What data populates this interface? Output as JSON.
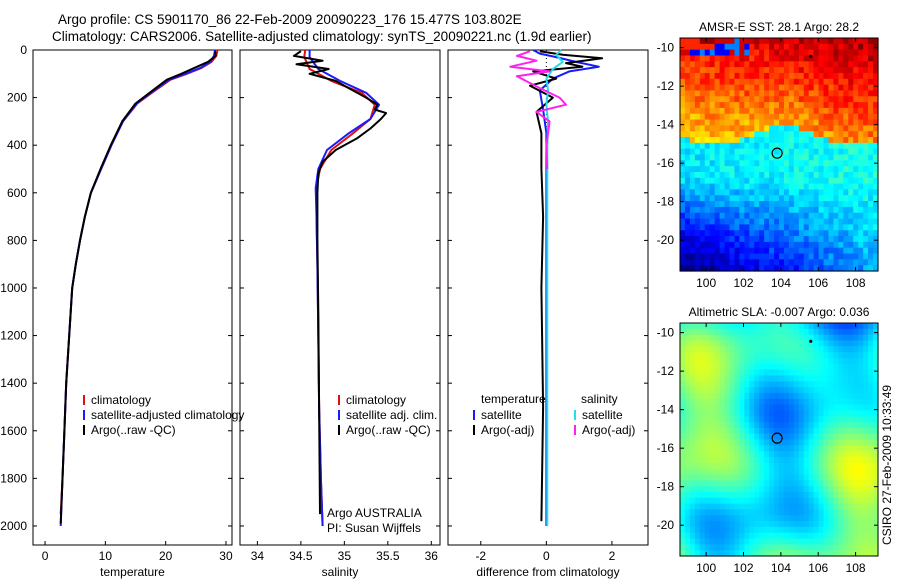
{
  "header": {
    "line1": "Argo profile: CS 5901170_86 22-Feb-2009 20090223_176 15.477S 103.802E",
    "line2": "Climatology: CARS2006. Satellite-adjusted climatology: synTS_20090221.nc (1.9d earlier)"
  },
  "stamp": "CSIRO 27-Feb-2009 10:33:49",
  "colors": {
    "red": "#dd1111",
    "blue": "#1a1aff",
    "black": "#000000",
    "cyan": "#22e0e8",
    "magenta": "#ff22ee"
  },
  "chart_data": [
    {
      "type": "line",
      "name": "temperature",
      "xlabel": "temperature",
      "ylabel": "",
      "xlim": [
        -2,
        31
      ],
      "ylim": [
        0,
        2080
      ],
      "y_inverted": true,
      "xticks": [
        0,
        10,
        20,
        30
      ],
      "xtick_labels": [
        "0",
        "10",
        "20",
        "30"
      ],
      "yticks": [
        0,
        200,
        400,
        600,
        800,
        1000,
        1200,
        1400,
        1600,
        1800,
        2000
      ],
      "ytick_labels": [
        "0",
        "200",
        "400",
        "600",
        "800",
        "1000",
        "1200",
        "1400",
        "1600",
        "1800",
        "2000"
      ],
      "legend": [
        "climatology",
        "satellite-adjusted climatology",
        "Argo(..raw -QC)"
      ],
      "series": [
        {
          "name": "climatology",
          "color": "red",
          "x": [
            28.6,
            28.4,
            27.6,
            26.0,
            23.5,
            20.8,
            18.0,
            15.3,
            12.9,
            11.0,
            9.3,
            7.6,
            6.6,
            5.8,
            5.1,
            4.5,
            4.0,
            3.5,
            3.2,
            2.9,
            2.6
          ],
          "y": [
            0,
            25,
            50,
            75,
            100,
            125,
            175,
            225,
            300,
            400,
            500,
            600,
            700,
            800,
            900,
            1000,
            1200,
            1400,
            1600,
            1800,
            1950
          ]
        },
        {
          "name": "satellite-adjusted climatology",
          "color": "blue",
          "x": [
            28.2,
            28.0,
            27.4,
            25.8,
            23.3,
            20.6,
            17.8,
            15.2,
            12.9,
            11.0,
            9.3,
            7.6,
            6.6,
            5.8,
            5.1,
            4.5,
            4.0,
            3.5,
            3.2,
            2.9,
            2.6
          ],
          "y": [
            0,
            25,
            50,
            75,
            100,
            125,
            175,
            225,
            300,
            400,
            500,
            600,
            700,
            800,
            900,
            1000,
            1200,
            1400,
            1600,
            1800,
            2000
          ]
        },
        {
          "name": "Argo(..raw -QC)",
          "color": "black",
          "x": [
            28.2,
            28.3,
            27.0,
            24.8,
            22.6,
            20.2,
            17.6,
            15.0,
            12.8,
            10.9,
            9.2,
            7.6,
            6.6,
            5.8,
            5.1,
            4.5,
            4.0,
            3.5,
            3.2,
            2.9,
            2.6
          ],
          "y": [
            5,
            25,
            50,
            75,
            100,
            125,
            175,
            225,
            300,
            400,
            500,
            600,
            700,
            800,
            900,
            1000,
            1200,
            1400,
            1600,
            1800,
            1990
          ]
        }
      ]
    },
    {
      "type": "line",
      "name": "salinity",
      "xlabel": "salinity",
      "ylabel": "",
      "xlim": [
        33.8,
        36.1
      ],
      "ylim": [
        0,
        2080
      ],
      "y_inverted": true,
      "xticks": [
        34,
        34.5,
        35,
        35.5,
        36
      ],
      "xtick_labels": [
        "34",
        "34.5",
        "35",
        "35.5",
        "36"
      ],
      "legend": [
        "climatology",
        "satellite adj. clim.",
        "Argo(..raw -QC)"
      ],
      "annotations": [
        "Argo AUSTRALIA",
        "PI: Susan Wijffels"
      ],
      "series": [
        {
          "name": "climatology",
          "color": "red",
          "x": [
            34.55,
            34.54,
            34.6,
            34.85,
            35.2,
            35.35,
            35.3,
            35.1,
            34.85,
            34.72,
            34.68,
            34.68,
            34.69,
            34.7,
            34.71,
            34.73,
            34.75
          ],
          "y": [
            0,
            30,
            80,
            130,
            180,
            230,
            290,
            350,
            420,
            500,
            580,
            700,
            900,
            1200,
            1500,
            1800,
            2000
          ]
        },
        {
          "name": "satellite adj. clim.",
          "color": "blue",
          "x": [
            34.6,
            34.6,
            34.7,
            34.95,
            35.25,
            35.4,
            35.3,
            35.05,
            34.8,
            34.7,
            34.67,
            34.68,
            34.69,
            34.7,
            34.71,
            34.73,
            34.75
          ],
          "y": [
            0,
            30,
            80,
            130,
            180,
            230,
            290,
            350,
            420,
            500,
            580,
            700,
            900,
            1200,
            1500,
            1800,
            2000
          ]
        },
        {
          "name": "Argo(..raw -QC)",
          "color": "black",
          "x": [
            34.5,
            34.42,
            34.75,
            34.45,
            34.82,
            34.6,
            34.9,
            35.05,
            35.25,
            35.38,
            35.35,
            35.48,
            35.42,
            35.3,
            35.15,
            34.9,
            34.75,
            34.7,
            34.69,
            34.69,
            34.7,
            34.71,
            34.72
          ],
          "y": [
            5,
            25,
            45,
            60,
            80,
            100,
            130,
            160,
            200,
            230,
            250,
            265,
            290,
            330,
            370,
            420,
            470,
            520,
            600,
            800,
            1100,
            1500,
            1950
          ]
        }
      ]
    },
    {
      "type": "line",
      "name": "difference",
      "xlabel": "difference from climatology",
      "ylabel": "",
      "xlim": [
        -3,
        3.1
      ],
      "ylim": [
        0,
        2080
      ],
      "y_inverted": true,
      "xticks": [
        -2,
        0,
        2
      ],
      "xtick_labels": [
        "-2",
        "0",
        "2"
      ],
      "legend_left_title": "temperature",
      "legend_right_title": "salinity",
      "legend_left": [
        "satellite",
        "Argo(-adj)"
      ],
      "legend_right": [
        "satellite",
        "Argo(-adj)"
      ],
      "series": [
        {
          "name": "temperature satellite",
          "color": "blue",
          "x": [
            -0.4,
            -0.2,
            0.3,
            0.9,
            1.6,
            0.7,
            0.2,
            -0.2,
            -0.1,
            0.0,
            0.0,
            0.0,
            0.0,
            0.0
          ],
          "y": [
            0,
            15,
            30,
            50,
            70,
            90,
            120,
            170,
            250,
            350,
            500,
            800,
            1300,
            2000
          ]
        },
        {
          "name": "temperature Argo(-adj)",
          "color": "black",
          "x": [
            -0.2,
            0.5,
            1.7,
            0.6,
            1.1,
            -0.4,
            0.3,
            -0.5,
            0.2,
            -0.3,
            -0.15,
            -0.15,
            -0.1,
            -0.15,
            -0.1,
            -0.15
          ],
          "y": [
            5,
            20,
            35,
            55,
            70,
            90,
            120,
            150,
            200,
            260,
            350,
            500,
            700,
            1000,
            1500,
            1980
          ]
        },
        {
          "name": "salinity satellite",
          "color": "cyan",
          "x": [
            0.45,
            0.3,
            0.5,
            0.2,
            0.0,
            0.05,
            0.0,
            0.05,
            0.03,
            0.03,
            0.03,
            0.03,
            0.03
          ],
          "y": [
            0,
            20,
            50,
            80,
            120,
            170,
            230,
            300,
            420,
            600,
            1000,
            1500,
            2000
          ]
        },
        {
          "name": "salinity Argo(-adj)",
          "color": "magenta",
          "x": [
            -0.5,
            -0.9,
            -0.3,
            -1.1,
            0.1,
            -0.9,
            -0.2,
            0.4,
            0.6,
            -0.3,
            0.1,
            0.0,
            0.03
          ],
          "y": [
            5,
            25,
            45,
            70,
            90,
            110,
            160,
            200,
            230,
            260,
            300,
            400,
            500
          ]
        }
      ]
    },
    {
      "type": "heatmap",
      "name": "sst_map",
      "title": "AMSR-E SST: 28.1  Argo: 28.2",
      "xlim": [
        98.6,
        109.2
      ],
      "ylim": [
        -21.6,
        -9.5
      ],
      "xticks": [
        100,
        102,
        104,
        106,
        108
      ],
      "xtick_labels": [
        "100",
        "102",
        "104",
        "106",
        "108"
      ],
      "yticks": [
        -10,
        -12,
        -14,
        -16,
        -18,
        -20
      ],
      "ytick_labels": [
        "-10",
        "-12",
        "-14",
        "-16",
        "-18",
        "-20"
      ],
      "marker": {
        "lon": 103.8,
        "lat": -15.48
      },
      "track_point": {
        "lon": 105.6,
        "lat": -10.45
      }
    },
    {
      "type": "heatmap",
      "name": "sla_map",
      "title": "Altimetric SLA: -0.007  Argo: 0.036",
      "xlim": [
        98.6,
        109.2
      ],
      "ylim": [
        -21.6,
        -9.5
      ],
      "xticks": [
        100,
        102,
        104,
        106,
        108
      ],
      "xtick_labels": [
        "100",
        "102",
        "104",
        "106",
        "108"
      ],
      "yticks": [
        -10,
        -12,
        -14,
        -16,
        -18,
        -20
      ],
      "ytick_labels": [
        "-10",
        "-12",
        "-14",
        "-16",
        "-18",
        "-20"
      ],
      "marker": {
        "lon": 103.8,
        "lat": -15.48
      },
      "track_point": {
        "lon": 105.6,
        "lat": -10.45
      }
    }
  ]
}
